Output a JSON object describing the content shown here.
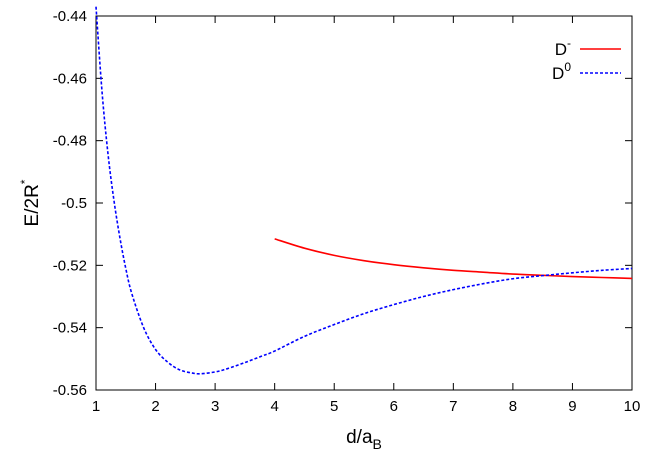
{
  "chart_data": {
    "type": "line",
    "xlim": [
      1,
      10
    ],
    "ylim": [
      -0.56,
      -0.44
    ],
    "x_ticks": [
      "1",
      "2",
      "3",
      "4",
      "5",
      "6",
      "7",
      "8",
      "9",
      "10"
    ],
    "y_ticks": [
      "-0.44",
      "-0.46",
      "-0.48",
      "-0.5",
      "-0.52",
      "-0.54",
      "-0.56"
    ],
    "ylabel": {
      "base": "E/2R",
      "sup": "*"
    },
    "xlabel": {
      "base": "d/a",
      "sub": "B"
    },
    "grid": false,
    "legend_position": "top-right",
    "series": [
      {
        "name": {
          "base": "D",
          "sup": "-"
        },
        "color": "#ff0000",
        "style": "solid",
        "x": [
          4.0,
          4.5,
          5.0,
          5.5,
          6.0,
          6.5,
          7.0,
          7.5,
          8.0,
          8.5,
          9.0,
          9.5,
          10.0
        ],
        "y": [
          -0.5115,
          -0.5145,
          -0.5168,
          -0.5185,
          -0.5198,
          -0.5208,
          -0.5216,
          -0.5222,
          -0.5228,
          -0.5232,
          -0.5236,
          -0.5239,
          -0.5242
        ]
      },
      {
        "name": {
          "base": "D",
          "sup": "0"
        },
        "color": "#0000ff",
        "style": "dashed",
        "x": [
          1.0,
          1.1,
          1.2,
          1.3,
          1.4,
          1.5,
          1.6,
          1.8,
          2.0,
          2.2,
          2.4,
          2.6,
          2.75,
          3.0,
          3.2,
          3.5,
          3.8,
          4.0,
          4.5,
          5.0,
          5.5,
          6.0,
          6.5,
          7.0,
          7.5,
          8.0,
          8.5,
          9.0,
          9.5,
          10.0
        ],
        "y": [
          -0.437,
          -0.464,
          -0.484,
          -0.499,
          -0.511,
          -0.521,
          -0.529,
          -0.54,
          -0.547,
          -0.551,
          -0.5535,
          -0.5545,
          -0.5548,
          -0.5542,
          -0.5532,
          -0.5512,
          -0.549,
          -0.5475,
          -0.5428,
          -0.539,
          -0.5355,
          -0.5326,
          -0.53,
          -0.5278,
          -0.5259,
          -0.5243,
          -0.5233,
          -0.5224,
          -0.5216,
          -0.521
        ]
      }
    ]
  }
}
